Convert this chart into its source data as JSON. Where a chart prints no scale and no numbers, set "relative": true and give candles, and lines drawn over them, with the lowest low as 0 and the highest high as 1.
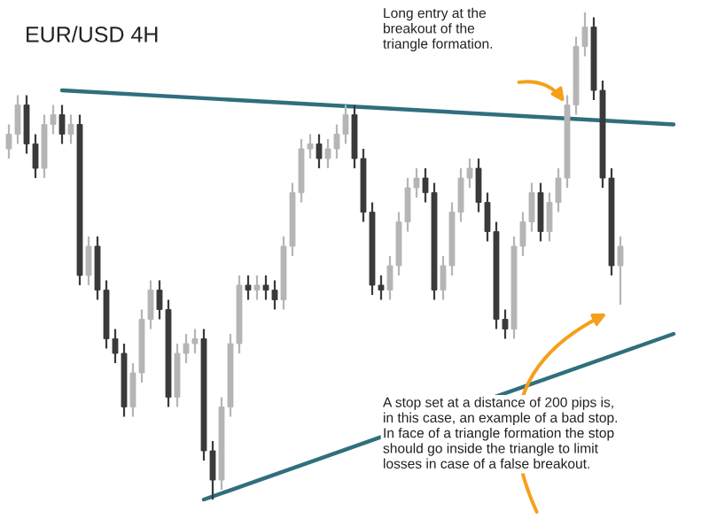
{
  "chart_data": {
    "type": "candlestick",
    "title": "EUR/USD 4H",
    "relative": true,
    "categories": [
      null,
      null,
      null,
      null,
      null,
      null,
      null,
      null,
      null,
      null,
      null,
      null,
      null,
      null,
      null,
      null,
      null,
      null,
      null,
      null,
      null,
      null,
      null,
      null,
      null,
      null,
      null,
      null,
      null,
      null,
      null,
      null,
      null,
      null,
      null,
      null,
      null,
      null,
      null,
      null,
      null,
      null,
      null,
      null,
      null,
      null,
      null,
      null,
      null,
      null,
      null,
      null,
      null,
      null,
      null,
      null,
      null,
      null,
      null,
      null,
      null,
      null,
      null,
      null,
      null,
      null,
      null,
      null,
      null,
      null,
      null,
      null,
      null,
      null,
      null,
      null
    ],
    "ohlc": [
      [
        0.72,
        0.77,
        0.7,
        0.75
      ],
      [
        0.75,
        0.83,
        0.73,
        0.81
      ],
      [
        0.81,
        0.83,
        0.71,
        0.73
      ],
      [
        0.73,
        0.75,
        0.66,
        0.68
      ],
      [
        0.68,
        0.79,
        0.66,
        0.77
      ],
      [
        0.77,
        0.81,
        0.75,
        0.79
      ],
      [
        0.79,
        0.81,
        0.73,
        0.75
      ],
      [
        0.75,
        0.79,
        0.73,
        0.77
      ],
      [
        0.77,
        0.79,
        0.44,
        0.46
      ],
      [
        0.46,
        0.54,
        0.44,
        0.52
      ],
      [
        0.52,
        0.54,
        0.41,
        0.43
      ],
      [
        0.43,
        0.45,
        0.31,
        0.33
      ],
      [
        0.33,
        0.35,
        0.28,
        0.3
      ],
      [
        0.3,
        0.32,
        0.17,
        0.19
      ],
      [
        0.19,
        0.28,
        0.17,
        0.26
      ],
      [
        0.26,
        0.39,
        0.24,
        0.37
      ],
      [
        0.37,
        0.45,
        0.35,
        0.43
      ],
      [
        0.43,
        0.45,
        0.37,
        0.39
      ],
      [
        0.39,
        0.41,
        0.19,
        0.21
      ],
      [
        0.21,
        0.32,
        0.19,
        0.3
      ],
      [
        0.3,
        0.34,
        0.28,
        0.32
      ],
      [
        0.32,
        0.35,
        0.3,
        0.33
      ],
      [
        0.33,
        0.35,
        0.08,
        0.1
      ],
      [
        0.1,
        0.12,
        0,
        0.04
      ],
      [
        0.04,
        0.21,
        0.02,
        0.19
      ],
      [
        0.19,
        0.34,
        0.17,
        0.32
      ],
      [
        0.32,
        0.46,
        0.3,
        0.44
      ],
      [
        0.44,
        0.46,
        0.41,
        0.43
      ],
      [
        0.43,
        0.46,
        0.41,
        0.44
      ],
      [
        0.44,
        0.46,
        0.41,
        0.43
      ],
      [
        0.43,
        0.45,
        0.39,
        0.41
      ],
      [
        0.41,
        0.54,
        0.39,
        0.52
      ],
      [
        0.52,
        0.65,
        0.5,
        0.63
      ],
      [
        0.63,
        0.74,
        0.61,
        0.72
      ],
      [
        0.72,
        0.75,
        0.7,
        0.73
      ],
      [
        0.73,
        0.75,
        0.68,
        0.7
      ],
      [
        0.7,
        0.74,
        0.68,
        0.72
      ],
      [
        0.72,
        0.77,
        0.7,
        0.75
      ],
      [
        0.75,
        0.81,
        0.73,
        0.79
      ],
      [
        0.79,
        0.81,
        0.68,
        0.7
      ],
      [
        0.7,
        0.72,
        0.57,
        0.59
      ],
      [
        0.59,
        0.61,
        0.42,
        0.44
      ],
      [
        0.44,
        0.46,
        0.41,
        0.43
      ],
      [
        0.43,
        0.5,
        0.41,
        0.48
      ],
      [
        0.48,
        0.59,
        0.46,
        0.57
      ],
      [
        0.57,
        0.66,
        0.55,
        0.64
      ],
      [
        0.64,
        0.68,
        0.62,
        0.66
      ],
      [
        0.66,
        0.68,
        0.61,
        0.63
      ],
      [
        0.63,
        0.65,
        0.41,
        0.43
      ],
      [
        0.43,
        0.5,
        0.41,
        0.48
      ],
      [
        0.48,
        0.61,
        0.46,
        0.59
      ],
      [
        0.59,
        0.68,
        0.57,
        0.66
      ],
      [
        0.66,
        0.7,
        0.64,
        0.68
      ],
      [
        0.68,
        0.7,
        0.59,
        0.61
      ],
      [
        0.61,
        0.63,
        0.53,
        0.55
      ],
      [
        0.55,
        0.57,
        0.35,
        0.37
      ],
      [
        0.37,
        0.39,
        0.33,
        0.35
      ],
      [
        0.35,
        0.54,
        0.33,
        0.52
      ],
      [
        0.52,
        0.59,
        0.5,
        0.57
      ],
      [
        0.57,
        0.65,
        0.55,
        0.63
      ],
      [
        0.63,
        0.65,
        0.53,
        0.55
      ],
      [
        0.55,
        0.63,
        0.53,
        0.61
      ],
      [
        0.61,
        0.68,
        0.59,
        0.66
      ],
      [
        0.66,
        0.83,
        0.64,
        0.81
      ],
      [
        0.81,
        0.95,
        0.79,
        0.93
      ],
      [
        0.93,
        1,
        0.91,
        0.97
      ],
      [
        0.97,
        0.99,
        0.82,
        0.84
      ],
      [
        0.84,
        0.86,
        0.64,
        0.66
      ],
      [
        0.66,
        0.68,
        0.46,
        0.48
      ],
      [
        0.48,
        0.54,
        0.4,
        0.52
      ],
      null,
      null,
      null,
      null,
      null,
      null
    ],
    "series": [
      {
        "type": "line",
        "color": "#2f6f7e",
        "values": [
          null,
          null,
          null,
          null,
          null,
          null,
          0.84,
          null,
          null,
          null,
          null,
          null,
          null,
          null,
          null,
          null,
          null,
          null,
          null,
          null,
          null,
          null,
          null,
          null,
          null,
          null,
          null,
          null,
          null,
          null,
          null,
          null,
          null,
          null,
          null,
          null,
          null,
          null,
          null,
          null,
          null,
          null,
          null,
          null,
          null,
          null,
          null,
          null,
          null,
          null,
          null,
          null,
          null,
          null,
          null,
          null,
          null,
          null,
          null,
          null,
          null,
          null,
          null,
          null,
          null,
          null,
          null,
          null,
          null,
          null,
          null,
          null,
          null,
          null,
          null,
          0.77
        ]
      },
      {
        "type": "line",
        "color": "#2f6f7e",
        "values": [
          null,
          null,
          null,
          null,
          null,
          null,
          null,
          null,
          null,
          null,
          null,
          null,
          null,
          null,
          null,
          null,
          null,
          null,
          null,
          null,
          null,
          null,
          0,
          null,
          null,
          null,
          null,
          null,
          null,
          null,
          null,
          null,
          null,
          null,
          null,
          null,
          null,
          null,
          null,
          null,
          null,
          null,
          null,
          null,
          null,
          null,
          null,
          null,
          null,
          null,
          null,
          null,
          null,
          null,
          null,
          null,
          null,
          null,
          null,
          null,
          null,
          null,
          null,
          null,
          null,
          null,
          null,
          null,
          null,
          null,
          null,
          null,
          null,
          null,
          null,
          0.34
        ]
      }
    ],
    "annotations": [
      "Long entry at the\nbreakout of the\ntriangle formation.",
      "A stop set at a distance of 200 pips is,\nin this case, an example of a bad stop.\nIn face of a triangle formation the stop\nshould go inside the triangle to limit\nlosses in case of a false breakout."
    ]
  }
}
